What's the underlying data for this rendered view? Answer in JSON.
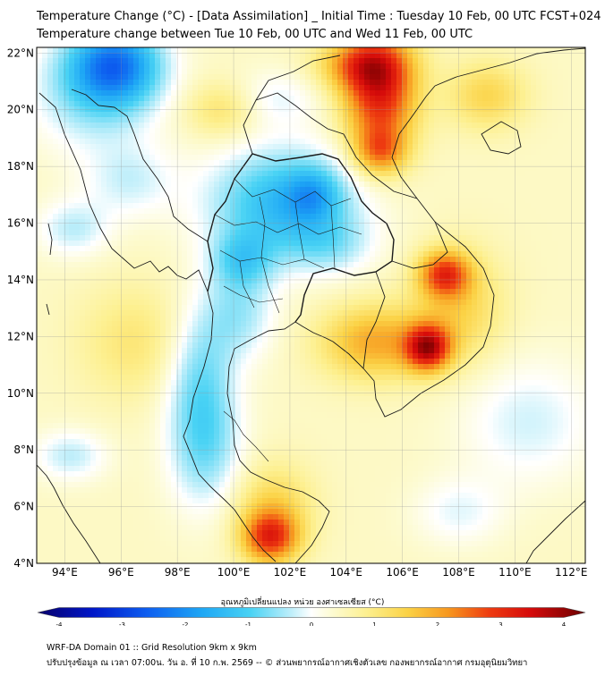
{
  "title_line1": "Temperature Change (°C) - [Data Assimilation] _ Initial Time : Tuesday 10 Feb, 00 UTC FCST+024",
  "title_line2": "Temperature change between Tue 10 Feb, 00 UTC and Wed 11 Feb, 00 UTC",
  "map": {
    "lon_range": [
      93,
      112.5
    ],
    "lat_range": [
      4,
      22.2
    ],
    "lon_ticks": [
      94,
      96,
      98,
      100,
      102,
      104,
      106,
      108,
      110,
      112
    ],
    "lon_tick_labels": [
      "94°E",
      "96°E",
      "98°E",
      "100°E",
      "102°E",
      "104°E",
      "106°E",
      "108°E",
      "110°E",
      "112°E"
    ],
    "lat_ticks": [
      4,
      6,
      8,
      10,
      12,
      14,
      16,
      18,
      20,
      22
    ],
    "lat_tick_labels": [
      "4°N",
      "6°N",
      "8°N",
      "10°N",
      "12°N",
      "14°N",
      "16°N",
      "18°N",
      "20°N",
      "22°N"
    ],
    "grid": true,
    "field_baseline_c": 0.4,
    "anomalies": [
      {
        "lon": 95.8,
        "lat": 21.6,
        "rx": 1.6,
        "ry": 1.4,
        "value": -2.2
      },
      {
        "lon": 95.0,
        "lat": 20.6,
        "rx": 2.2,
        "ry": 2.0,
        "value": -0.9
      },
      {
        "lon": 101.8,
        "lat": 16.7,
        "rx": 2.6,
        "ry": 1.9,
        "value": -1.7
      },
      {
        "lon": 102.8,
        "lat": 17.0,
        "rx": 0.9,
        "ry": 0.9,
        "value": -0.9
      },
      {
        "lon": 100.3,
        "lat": 14.7,
        "rx": 1.1,
        "ry": 1.0,
        "value": -1.0
      },
      {
        "lon": 103.4,
        "lat": 15.2,
        "rx": 1.5,
        "ry": 1.0,
        "value": -0.6
      },
      {
        "lon": 100.2,
        "lat": 12.8,
        "rx": 1.3,
        "ry": 1.6,
        "value": -0.8
      },
      {
        "lon": 98.8,
        "lat": 10.6,
        "rx": 1.2,
        "ry": 2.5,
        "value": -1.0
      },
      {
        "lon": 99.0,
        "lat": 8.0,
        "rx": 1.3,
        "ry": 2.2,
        "value": -0.9
      },
      {
        "lon": 94.3,
        "lat": 15.8,
        "rx": 1.3,
        "ry": 1.0,
        "value": -0.7
      },
      {
        "lon": 94.2,
        "lat": 7.8,
        "rx": 1.3,
        "ry": 0.9,
        "value": -0.7
      },
      {
        "lon": 96.3,
        "lat": 17.5,
        "rx": 1.6,
        "ry": 1.3,
        "value": -0.6
      },
      {
        "lon": 101.5,
        "lat": 20.4,
        "rx": 1.6,
        "ry": 1.0,
        "value": -0.5
      },
      {
        "lon": 110.5,
        "lat": 9.0,
        "rx": 2.4,
        "ry": 2.2,
        "value": -0.6
      },
      {
        "lon": 108.0,
        "lat": 5.8,
        "rx": 1.6,
        "ry": 1.2,
        "value": -0.5
      },
      {
        "lon": 105.2,
        "lat": 20.6,
        "rx": 1.3,
        "ry": 2.1,
        "value": 2.5
      },
      {
        "lon": 104.5,
        "lat": 21.6,
        "rx": 1.5,
        "ry": 0.9,
        "value": 1.4
      },
      {
        "lon": 105.2,
        "lat": 18.5,
        "rx": 0.9,
        "ry": 0.8,
        "value": 1.3
      },
      {
        "lon": 107.5,
        "lat": 14.2,
        "rx": 0.9,
        "ry": 0.8,
        "value": 2.0
      },
      {
        "lon": 106.9,
        "lat": 11.6,
        "rx": 0.8,
        "ry": 0.8,
        "value": 2.6
      },
      {
        "lon": 105.0,
        "lat": 11.8,
        "rx": 1.9,
        "ry": 1.3,
        "value": 1.4
      },
      {
        "lon": 108.0,
        "lat": 13.0,
        "rx": 1.6,
        "ry": 2.0,
        "value": 0.9
      },
      {
        "lon": 101.3,
        "lat": 4.9,
        "rx": 1.0,
        "ry": 0.9,
        "value": 2.1
      },
      {
        "lon": 101.4,
        "lat": 6.0,
        "rx": 1.4,
        "ry": 1.5,
        "value": 0.9
      },
      {
        "lon": 99.6,
        "lat": 20.0,
        "rx": 1.3,
        "ry": 1.0,
        "value": 0.7
      },
      {
        "lon": 109.0,
        "lat": 20.5,
        "rx": 1.4,
        "ry": 1.2,
        "value": 0.9
      },
      {
        "lon": 96.5,
        "lat": 11.8,
        "rx": 2.0,
        "ry": 2.0,
        "value": 0.6
      }
    ]
  },
  "colorbar": {
    "title": "อุณหภูมิเปลี่ยนแปลง หน่วย องศาเซลเซียส (°C)",
    "min": -4,
    "max": 4,
    "ticks": [
      -4,
      -3,
      -2,
      -1,
      0,
      1,
      2,
      3,
      4
    ],
    "tick_labels": [
      "-4",
      "-3",
      "-2",
      "-1",
      "0",
      "1",
      "2",
      "3",
      "4"
    ],
    "stops": [
      {
        "v": -4.0,
        "c": "#08006b"
      },
      {
        "v": -3.2,
        "c": "#0016c8"
      },
      {
        "v": -2.4,
        "c": "#0d5ef0"
      },
      {
        "v": -1.6,
        "c": "#1ea7f5"
      },
      {
        "v": -0.9,
        "c": "#48d2f4"
      },
      {
        "v": -0.3,
        "c": "#bdeefa"
      },
      {
        "v": 0.0,
        "c": "#ffffff"
      },
      {
        "v": 0.3,
        "c": "#fdfbd2"
      },
      {
        "v": 0.8,
        "c": "#fdf090"
      },
      {
        "v": 1.4,
        "c": "#fbd245"
      },
      {
        "v": 2.0,
        "c": "#f7971e"
      },
      {
        "v": 2.6,
        "c": "#ee3b10"
      },
      {
        "v": 3.2,
        "c": "#d50a0a"
      },
      {
        "v": 4.0,
        "c": "#6b0000"
      }
    ]
  },
  "footer_line1": "WRF-DA Domain 01 :: Grid Resolution 9km x 9km",
  "footer_line2": "ปรับปรุงข้อมูล ณ เวลา 07:00น. วัน อ. ที่ 10 ก.พ. 2569 -- © ส่วนพยากรณ์อากาศเชิงตัวเลข กองพยากรณ์อากาศ กรมอุตุนิยมวิทยา"
}
